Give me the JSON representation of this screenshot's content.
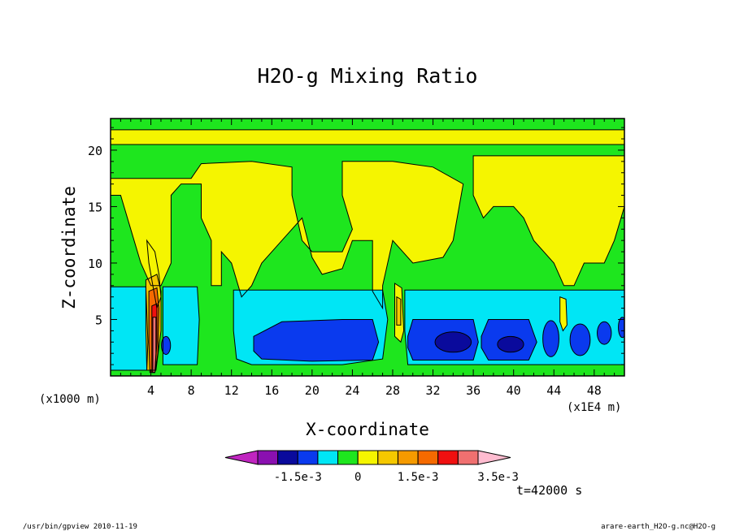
{
  "chart_data": {
    "type": "heatmap",
    "title": "H2O-g Mixing Ratio",
    "xlabel": "X-coordinate",
    "ylabel": "Z-coordinate",
    "x_unit_left": "(x1000 m)",
    "x_unit_right": "(x1E4 m)",
    "x_range": [
      0,
      51
    ],
    "y_range": [
      0,
      22.8
    ],
    "x_ticks": [
      "4",
      "8",
      "12",
      "16",
      "20",
      "24",
      "28",
      "32",
      "36",
      "40",
      "44",
      "48"
    ],
    "x_tick_values": [
      4,
      8,
      12,
      16,
      20,
      24,
      28,
      32,
      36,
      40,
      44,
      48
    ],
    "y_ticks": [
      "5",
      "10",
      "15",
      "20"
    ],
    "y_tick_values": [
      5,
      10,
      15,
      20
    ],
    "colorbar": {
      "levels": [
        "-2.5e-3",
        "-2e-3",
        "-1.5e-3",
        "-1e-3",
        "-5e-4",
        "0",
        "5e-4",
        "1e-3",
        "1.5e-3",
        "2e-3",
        "2.5e-3",
        "3e-3",
        "3.5e-3"
      ],
      "labels": [
        "-1.5e-3",
        "0",
        "1.5e-3",
        "3.5e-3"
      ],
      "label_values": [
        -0.0015,
        0,
        0.0015,
        0.0035
      ],
      "colors": [
        "#c025c0",
        "#8a10b0",
        "#0a0a9c",
        "#0a3aee",
        "#00e6f5",
        "#1ee61e",
        "#f5f500",
        "#f5c800",
        "#f59a00",
        "#f56a00",
        "#f01010",
        "#f07070",
        "#ffbcd0"
      ]
    },
    "time_label": "t=42000 s",
    "regions": [
      {
        "shape": "rect",
        "x": [
          0,
          51
        ],
        "y": [
          0,
          22.8
        ],
        "level": "0"
      },
      {
        "shape": "poly",
        "level": "5e-4",
        "points": [
          [
            0,
            20.5
          ],
          [
            51,
            20.5
          ],
          [
            51,
            21.8
          ],
          [
            0,
            21.8
          ]
        ]
      },
      {
        "shape": "poly",
        "level": "5e-4",
        "points": [
          [
            0,
            17.5
          ],
          [
            8,
            17.5
          ],
          [
            9,
            18.8
          ],
          [
            14,
            19
          ],
          [
            18,
            18.5
          ],
          [
            18,
            16
          ],
          [
            19,
            12
          ],
          [
            20,
            11
          ],
          [
            23,
            11
          ],
          [
            24,
            13
          ],
          [
            23,
            16
          ],
          [
            23,
            19
          ],
          [
            28,
            19
          ],
          [
            32,
            18.5
          ],
          [
            35,
            17
          ],
          [
            34,
            12
          ],
          [
            33,
            10.5
          ],
          [
            30,
            10
          ],
          [
            29,
            11
          ],
          [
            28,
            12
          ],
          [
            27,
            8
          ],
          [
            27,
            6
          ],
          [
            26,
            7.5
          ],
          [
            26,
            12
          ],
          [
            24,
            12
          ],
          [
            23,
            9.5
          ],
          [
            21,
            9
          ],
          [
            20,
            10.5
          ],
          [
            19,
            14
          ],
          [
            17,
            12
          ],
          [
            15,
            10
          ],
          [
            14,
            8
          ],
          [
            13,
            7
          ],
          [
            12,
            10
          ],
          [
            11,
            11
          ],
          [
            11,
            8
          ],
          [
            10,
            8
          ],
          [
            10,
            12
          ],
          [
            9,
            14
          ],
          [
            9,
            17
          ],
          [
            7,
            17
          ],
          [
            6,
            16
          ],
          [
            6,
            10
          ],
          [
            5,
            8
          ],
          [
            4,
            8
          ],
          [
            3,
            10
          ],
          [
            2,
            13
          ],
          [
            1,
            16
          ],
          [
            0,
            16
          ]
        ]
      },
      {
        "shape": "poly",
        "level": "5e-4",
        "points": [
          [
            36,
            19.5
          ],
          [
            44,
            19.5
          ],
          [
            51,
            19.5
          ],
          [
            51,
            15
          ],
          [
            50,
            12
          ],
          [
            49,
            10
          ],
          [
            47,
            10
          ],
          [
            46,
            8
          ],
          [
            45,
            8
          ],
          [
            44,
            10
          ],
          [
            42,
            12
          ],
          [
            41,
            14
          ],
          [
            40,
            15
          ],
          [
            38,
            15
          ],
          [
            37,
            14
          ],
          [
            36,
            16
          ],
          [
            36,
            18.5
          ]
        ]
      },
      {
        "shape": "poly",
        "level": "5e-4",
        "points": [
          [
            3.6,
            12
          ],
          [
            4.4,
            11
          ],
          [
            4.8,
            9
          ],
          [
            5,
            7
          ],
          [
            4.6,
            6
          ],
          [
            4.2,
            8
          ],
          [
            3.8,
            10
          ]
        ]
      },
      {
        "shape": "poly",
        "level": "-5e-4",
        "points": [
          [
            0,
            7.9
          ],
          [
            3.5,
            7.9
          ],
          [
            3.7,
            3
          ],
          [
            3.6,
            0.5
          ],
          [
            0,
            0.5
          ]
        ]
      },
      {
        "shape": "poly",
        "level": "-5e-4",
        "points": [
          [
            5.2,
            7.9
          ],
          [
            8.6,
            7.9
          ],
          [
            8.8,
            5
          ],
          [
            8.6,
            1
          ],
          [
            5.2,
            1
          ]
        ]
      },
      {
        "shape": "poly",
        "level": "-5e-4",
        "points": [
          [
            12.2,
            7.6
          ],
          [
            27,
            7.6
          ],
          [
            27.5,
            5
          ],
          [
            27,
            1.5
          ],
          [
            23,
            1
          ],
          [
            14,
            1
          ],
          [
            12.5,
            1.5
          ],
          [
            12.2,
            4
          ]
        ]
      },
      {
        "shape": "poly",
        "level": "-5e-4",
        "points": [
          [
            29.2,
            7.6
          ],
          [
            47.5,
            7.6
          ],
          [
            51,
            7.6
          ],
          [
            51,
            1
          ],
          [
            47,
            1
          ],
          [
            29.5,
            1
          ],
          [
            29.2,
            4
          ]
        ]
      },
      {
        "shape": "poly",
        "level": "-1e-3",
        "points": [
          [
            14.2,
            3.5
          ],
          [
            17,
            4.8
          ],
          [
            20,
            4.9
          ],
          [
            23,
            5
          ],
          [
            26,
            5
          ],
          [
            26.6,
            3
          ],
          [
            26,
            1.4
          ],
          [
            20,
            1.3
          ],
          [
            15,
            1.5
          ],
          [
            14.2,
            2.2
          ]
        ]
      },
      {
        "shape": "poly",
        "level": "-1e-3",
        "points": [
          [
            29.5,
            3.5
          ],
          [
            30,
            5
          ],
          [
            36,
            5
          ],
          [
            36.5,
            3
          ],
          [
            36,
            1.4
          ],
          [
            30,
            1.4
          ],
          [
            29.5,
            2.5
          ]
        ]
      },
      {
        "shape": "poly",
        "level": "-1e-3",
        "points": [
          [
            36.8,
            3.5
          ],
          [
            37.5,
            5
          ],
          [
            41.5,
            5
          ],
          [
            42.3,
            3
          ],
          [
            41.5,
            1.4
          ],
          [
            37.5,
            1.4
          ],
          [
            36.8,
            2.5
          ]
        ]
      },
      {
        "shape": "ellipse",
        "level": "-1e-3",
        "cx": 43.7,
        "cy": 3.3,
        "rx": 0.8,
        "ry": 1.6
      },
      {
        "shape": "ellipse",
        "level": "-1e-3",
        "cx": 46.6,
        "cy": 3.2,
        "rx": 1.0,
        "ry": 1.4
      },
      {
        "shape": "ellipse",
        "level": "-1e-3",
        "cx": 49,
        "cy": 3.8,
        "rx": 0.7,
        "ry": 1.0
      },
      {
        "shape": "ellipse",
        "level": "-1e-3",
        "cx": 50.8,
        "cy": 4.3,
        "rx": 0.4,
        "ry": 0.9
      },
      {
        "shape": "ellipse",
        "level": "-1e-3",
        "cx": 5.5,
        "cy": 2.7,
        "rx": 0.45,
        "ry": 0.8
      },
      {
        "shape": "ellipse",
        "level": "-1.5e-3",
        "cx": 34,
        "cy": 3.0,
        "rx": 1.8,
        "ry": 0.9
      },
      {
        "shape": "ellipse",
        "level": "-1.5e-3",
        "cx": 39.7,
        "cy": 2.8,
        "rx": 1.3,
        "ry": 0.7
      },
      {
        "shape": "poly",
        "level": "1e-3",
        "points": [
          [
            3.5,
            8.5
          ],
          [
            4.6,
            9
          ],
          [
            5,
            7.5
          ],
          [
            5,
            4
          ],
          [
            4.5,
            0.5
          ],
          [
            3.6,
            0.5
          ],
          [
            3.5,
            4
          ]
        ]
      },
      {
        "shape": "poly",
        "level": "2e-3",
        "points": [
          [
            3.8,
            7.5
          ],
          [
            4.6,
            7.8
          ],
          [
            4.8,
            6
          ],
          [
            4.7,
            2
          ],
          [
            4.4,
            0.3
          ],
          [
            3.9,
            0.3
          ],
          [
            3.8,
            3
          ]
        ]
      },
      {
        "shape": "poly",
        "level": "2.5e-3",
        "points": [
          [
            4.1,
            6.2
          ],
          [
            4.6,
            6.4
          ],
          [
            4.6,
            3
          ],
          [
            4.4,
            0.3
          ],
          [
            4.1,
            0.3
          ]
        ]
      },
      {
        "shape": "poly",
        "level": "3e-3",
        "points": [
          [
            4.2,
            5.2
          ],
          [
            4.5,
            5.2
          ],
          [
            4.5,
            2
          ],
          [
            4.4,
            0.3
          ],
          [
            4.2,
            0.3
          ]
        ]
      },
      {
        "shape": "poly",
        "level": "5e-4",
        "points": [
          [
            28.2,
            8.2
          ],
          [
            28.9,
            7.8
          ],
          [
            29.1,
            4
          ],
          [
            28.8,
            3
          ],
          [
            28.2,
            3.5
          ]
        ]
      },
      {
        "shape": "poly",
        "level": "1e-3",
        "points": [
          [
            28.4,
            7
          ],
          [
            28.8,
            6.8
          ],
          [
            28.8,
            4.5
          ],
          [
            28.4,
            4.5
          ]
        ]
      },
      {
        "shape": "poly",
        "level": "5e-4",
        "points": [
          [
            44.6,
            7
          ],
          [
            45.2,
            6.8
          ],
          [
            45.3,
            4.5
          ],
          [
            44.9,
            4
          ],
          [
            44.6,
            4.8
          ]
        ]
      }
    ]
  },
  "footer": {
    "left": "/usr/bin/gpview   2010-11-19",
    "right": "arare-earth_H2O-g.nc@H2O-g"
  }
}
